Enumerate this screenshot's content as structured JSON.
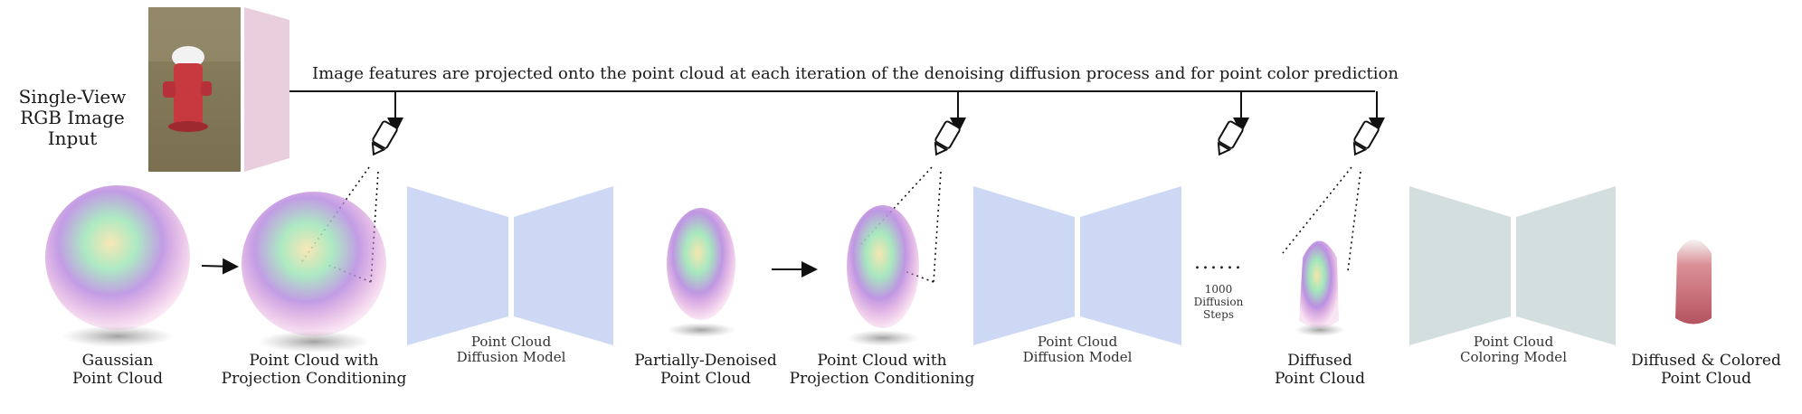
{
  "input": {
    "label": "Single-View\nRGB Image\nInput"
  },
  "banner": "Image features are projected onto the point cloud at each iteration of the denoising diffusion process and for point color prediction",
  "stages": [
    {
      "id": "gaussian",
      "caption": "Gaussian\nPoint Cloud"
    },
    {
      "id": "proj1",
      "caption": "Point Cloud with\nProjection Conditioning"
    },
    {
      "id": "diff1",
      "caption": "Point Cloud\nDiffusion Model"
    },
    {
      "id": "partial",
      "caption": "Partially-Denoised\nPoint Cloud"
    },
    {
      "id": "proj2",
      "caption": "Point Cloud with\nProjection Conditioning"
    },
    {
      "id": "diff2",
      "caption": "Point Cloud\nDiffusion Model"
    },
    {
      "id": "steps",
      "caption": "1000\nDiffusion\nSteps"
    },
    {
      "id": "diffused",
      "caption": "Diffused\nPoint Cloud"
    },
    {
      "id": "coloring",
      "caption": "Point Cloud\nColoring Model"
    },
    {
      "id": "colored",
      "caption": "Diffused & Colored\nPoint Cloud"
    }
  ],
  "dots": "......",
  "colors": {
    "diffusion_model": "#cdd8f4",
    "coloring_model": "#d3dfdf",
    "projection_plane": "#e9cfdd"
  }
}
